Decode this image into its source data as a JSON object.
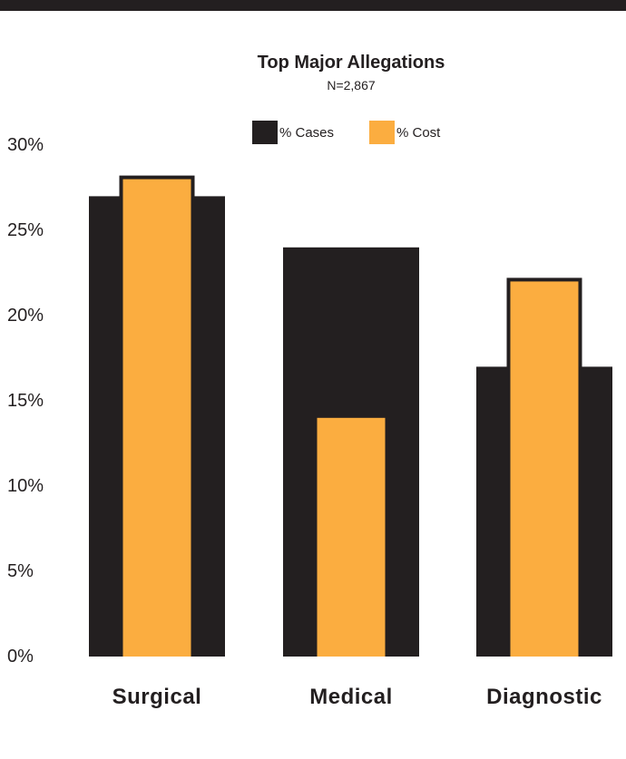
{
  "chart_data": {
    "type": "bar",
    "title": "Top Major Allegations",
    "subtitle": "N=2,867",
    "categories": [
      "Surgical",
      "Medical",
      "Diagnostic"
    ],
    "series": [
      {
        "name": "% Cases",
        "values": [
          27,
          24,
          17
        ],
        "color": "#231f20"
      },
      {
        "name": "% Cost",
        "values": [
          28,
          14,
          22
        ],
        "color": "#fbad40"
      }
    ],
    "ylim": [
      0,
      30
    ],
    "yticks": [
      "0%",
      "5%",
      "10%",
      "15%",
      "20%",
      "25%",
      "30%"
    ],
    "legend_position": "top-center",
    "grid": false
  }
}
